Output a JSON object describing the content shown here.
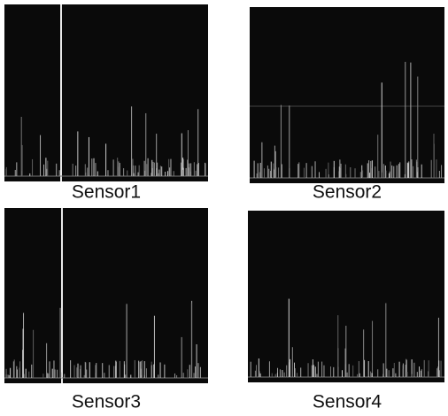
{
  "panels": [
    {
      "label": "Sensor1"
    },
    {
      "label": "Sensor2"
    },
    {
      "label": "Sensor3"
    },
    {
      "label": "Sensor4"
    }
  ]
}
